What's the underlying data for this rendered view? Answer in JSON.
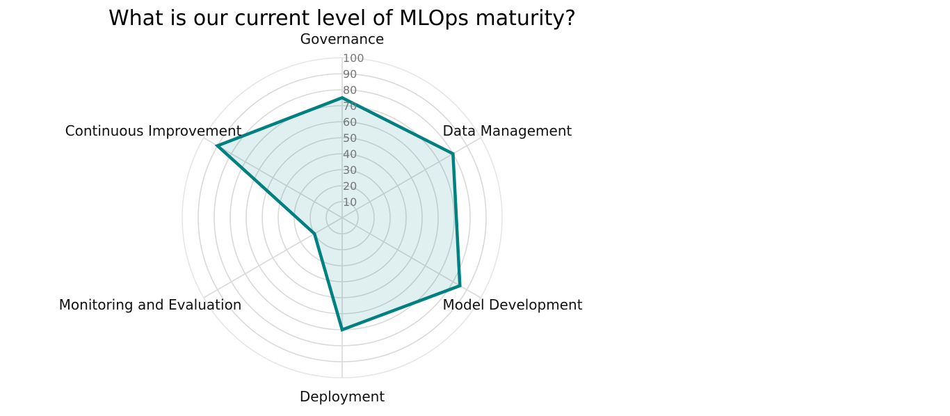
{
  "chart_data": {
    "type": "radar",
    "title": "What is our current level of MLOps maturity?",
    "categories": [
      "Governance",
      "Data Management",
      "Model Development",
      "Deployment",
      "Monitoring and Evaluation",
      "Continuous Improvement"
    ],
    "series": [
      {
        "values": [
          75,
          80,
          85,
          70,
          20,
          90
        ]
      }
    ],
    "r_ticks": [
      "10",
      "20",
      "30",
      "40",
      "50",
      "60",
      "70",
      "80",
      "90",
      "100"
    ],
    "rlim": [
      0,
      100
    ],
    "grid": true,
    "legend": "none"
  },
  "colors": {
    "series": "#008080",
    "fill": "#008080"
  }
}
